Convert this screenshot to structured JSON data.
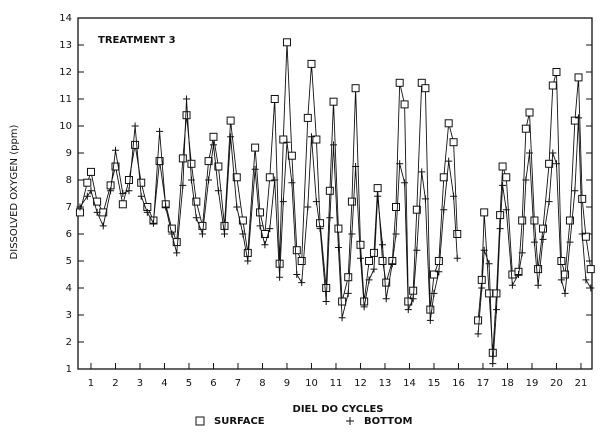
{
  "chart_data": {
    "type": "line",
    "annotation": "TREATMENT 3",
    "xlabel": "DIEL DO CYCLES",
    "ylabel": "DISSOLVED OXYGEN (ppm)",
    "xlim": [
      0.47,
      21.45
    ],
    "xticks": [
      1,
      2,
      3,
      4,
      5,
      6,
      7,
      8,
      9,
      10,
      11,
      12,
      13,
      14,
      15,
      16,
      17,
      18,
      19,
      20,
      21
    ],
    "ylim": [
      1,
      14
    ],
    "yticks": [
      1,
      2,
      3,
      4,
      5,
      6,
      7,
      8,
      9,
      10,
      11,
      12,
      13,
      14
    ],
    "x": [
      0.55,
      0.85,
      1.0,
      1.25,
      1.5,
      1.8,
      2.0,
      2.3,
      2.55,
      2.8,
      3.05,
      3.3,
      3.55,
      3.8,
      4.05,
      4.3,
      4.5,
      4.75,
      4.9,
      5.1,
      5.3,
      5.55,
      5.8,
      6.0,
      6.2,
      6.45,
      6.7,
      6.95,
      7.2,
      7.4,
      7.7,
      7.9,
      8.1,
      8.3,
      8.5,
      8.7,
      8.85,
      9.0,
      9.2,
      9.4,
      9.6,
      9.85,
      10.0,
      10.2,
      10.35,
      10.6,
      10.75,
      10.9,
      11.1,
      11.25,
      11.5,
      11.65,
      11.8,
      12.0,
      12.15,
      12.35,
      12.55,
      12.7,
      12.9,
      13.05,
      13.3,
      13.45,
      13.6,
      13.8,
      13.95,
      14.15,
      14.3,
      14.5,
      14.65,
      14.85,
      15.0,
      15.2,
      15.4,
      15.6,
      15.8,
      15.95,
      16.3,
      16.8,
      16.95,
      17.05,
      17.25,
      17.4,
      17.55,
      17.7,
      17.8,
      17.95,
      18.2,
      18.45,
      18.6,
      18.75,
      18.9,
      19.1,
      19.25,
      19.45,
      19.7,
      19.85,
      20.0,
      20.2,
      20.35,
      20.55,
      20.75,
      20.9,
      21.05,
      21.2,
      21.4
    ],
    "series": [
      {
        "name": "SURFACE",
        "color": "#111111",
        "marker": "square",
        "values": [
          6.8,
          7.9,
          8.3,
          7.2,
          6.8,
          7.8,
          8.5,
          7.1,
          8.0,
          9.3,
          7.9,
          7.0,
          6.5,
          8.7,
          7.1,
          6.2,
          5.7,
          8.8,
          10.4,
          8.6,
          7.2,
          6.3,
          8.7,
          9.6,
          8.5,
          6.3,
          10.2,
          8.1,
          6.5,
          5.3,
          9.2,
          6.8,
          6.0,
          8.1,
          11.0,
          4.9,
          9.5,
          13.1,
          8.9,
          5.4,
          5.0,
          10.3,
          12.3,
          9.5,
          6.4,
          4.0,
          7.6,
          10.9,
          6.2,
          3.5,
          4.4,
          7.2,
          11.4,
          5.6,
          3.5,
          5.0,
          5.3,
          7.7,
          5.0,
          4.2,
          5.0,
          7.0,
          11.6,
          10.8,
          3.5,
          3.9,
          6.9,
          11.6,
          11.4,
          3.2,
          4.5,
          5.0,
          8.1,
          10.1,
          9.4,
          6.0,
          null,
          2.8,
          4.3,
          6.8,
          3.8,
          1.6,
          3.8,
          6.7,
          8.5,
          8.1,
          4.5,
          4.6,
          6.5,
          9.9,
          10.5,
          6.5,
          4.7,
          6.2,
          8.6,
          11.5,
          12.0,
          5.0,
          4.5,
          6.5,
          10.2,
          11.8,
          7.3,
          5.9,
          4.7
        ]
      },
      {
        "name": "BOTTOM",
        "color": "#111111",
        "marker": "plus",
        "values": [
          7.0,
          7.4,
          7.6,
          6.8,
          6.3,
          7.6,
          9.1,
          7.5,
          7.6,
          10.0,
          7.4,
          6.8,
          6.4,
          9.8,
          7.0,
          6.0,
          5.3,
          7.8,
          11.0,
          8.0,
          6.6,
          6.0,
          8.0,
          9.3,
          7.6,
          6.0,
          9.6,
          7.0,
          6.0,
          5.0,
          8.4,
          6.3,
          5.6,
          6.2,
          8.0,
          4.4,
          7.2,
          9.4,
          7.9,
          4.5,
          4.2,
          7.0,
          9.6,
          7.2,
          6.2,
          3.5,
          6.6,
          9.3,
          5.5,
          2.9,
          3.8,
          6.0,
          8.5,
          5.1,
          3.3,
          4.3,
          4.7,
          7.4,
          5.6,
          3.6,
          4.9,
          6.0,
          8.6,
          7.9,
          3.2,
          3.6,
          5.4,
          8.3,
          7.3,
          2.8,
          3.8,
          4.6,
          6.9,
          8.7,
          7.4,
          5.1,
          null,
          2.3,
          4.0,
          5.4,
          4.9,
          1.2,
          3.2,
          6.2,
          7.8,
          6.9,
          4.1,
          4.5,
          5.3,
          8.0,
          9.0,
          5.7,
          4.1,
          5.8,
          7.2,
          9.0,
          8.6,
          4.3,
          3.8,
          5.7,
          7.6,
          10.3,
          6.0,
          4.3,
          4.0
        ]
      }
    ]
  }
}
